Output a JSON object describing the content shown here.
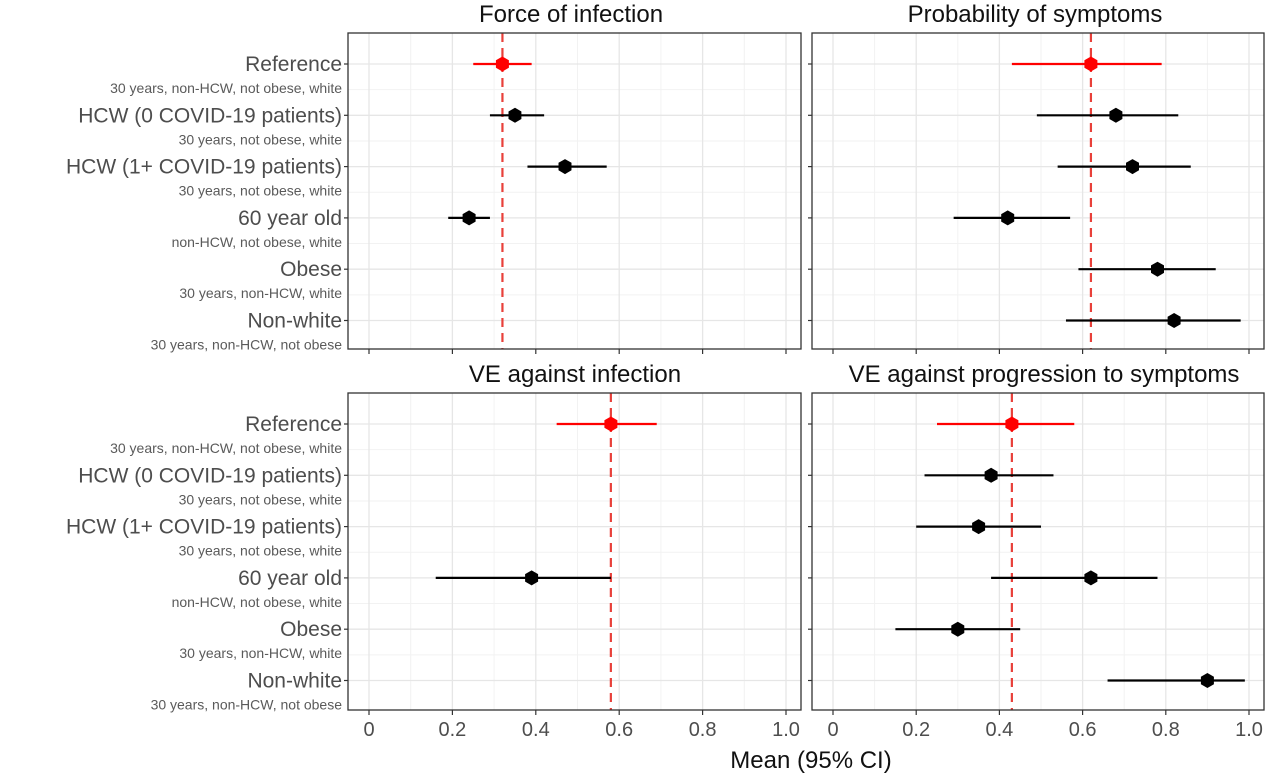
{
  "figure": {
    "xlabel": "Mean (95% CI)"
  },
  "categories": [
    {
      "label": "Reference",
      "sub": "30 years, non-HCW, not obese, white"
    },
    {
      "label": "HCW (0 COVID-19 patients)",
      "sub": "30 years, not obese, white"
    },
    {
      "label": "HCW (1+ COVID-19 patients)",
      "sub": "30 years, not obese, white"
    },
    {
      "label": "60 year old",
      "sub": "non-HCW, not obese, white"
    },
    {
      "label": "Obese",
      "sub": "30 years, non-HCW, white"
    },
    {
      "label": "Non-white",
      "sub": "30 years, non-HCW, not obese"
    }
  ],
  "colors": {
    "reference": "#ff0000",
    "point": "#000000",
    "refline": "#e8403a",
    "grid_major": "#e6e6e6",
    "grid_minor": "#f2f2f2"
  },
  "chart_data": [
    {
      "type": "scatter",
      "title": "Force of infection",
      "xlim": [
        0,
        1
      ],
      "xticks": [
        "0",
        "0.2",
        "0.4",
        "0.6",
        "0.8",
        "1.0"
      ],
      "reference_line": 0.32,
      "points": [
        {
          "mean": 0.32,
          "lo": 0.25,
          "hi": 0.39
        },
        {
          "mean": 0.35,
          "lo": 0.29,
          "hi": 0.42
        },
        {
          "mean": 0.47,
          "lo": 0.38,
          "hi": 0.57
        },
        {
          "mean": 0.24,
          "lo": 0.19,
          "hi": 0.29
        },
        {
          "mean": null,
          "lo": null,
          "hi": null
        },
        {
          "mean": null,
          "lo": null,
          "hi": null
        }
      ]
    },
    {
      "type": "scatter",
      "title": "Probability of symptoms",
      "xlim": [
        0,
        1
      ],
      "xticks": [
        "0",
        "0.2",
        "0.4",
        "0.6",
        "0.8",
        "1.0"
      ],
      "reference_line": 0.62,
      "points": [
        {
          "mean": 0.62,
          "lo": 0.43,
          "hi": 0.79
        },
        {
          "mean": 0.68,
          "lo": 0.49,
          "hi": 0.83
        },
        {
          "mean": 0.72,
          "lo": 0.54,
          "hi": 0.86
        },
        {
          "mean": 0.42,
          "lo": 0.29,
          "hi": 0.57
        },
        {
          "mean": 0.78,
          "lo": 0.59,
          "hi": 0.92
        },
        {
          "mean": 0.82,
          "lo": 0.56,
          "hi": 0.98
        }
      ]
    },
    {
      "type": "scatter",
      "title": "VE against infection",
      "xlim": [
        0,
        1
      ],
      "xticks": [
        "0",
        "0.2",
        "0.4",
        "0.6",
        "0.8",
        "1.0"
      ],
      "reference_line": 0.58,
      "points": [
        {
          "mean": 0.58,
          "lo": 0.45,
          "hi": 0.69
        },
        {
          "mean": null,
          "lo": null,
          "hi": null
        },
        {
          "mean": null,
          "lo": null,
          "hi": null
        },
        {
          "mean": 0.39,
          "lo": 0.16,
          "hi": 0.58
        },
        {
          "mean": null,
          "lo": null,
          "hi": null
        },
        {
          "mean": null,
          "lo": null,
          "hi": null
        }
      ]
    },
    {
      "type": "scatter",
      "title": "VE against progression to symptoms",
      "xlim": [
        0,
        1
      ],
      "xticks": [
        "0",
        "0.2",
        "0.4",
        "0.6",
        "0.8",
        "1.0"
      ],
      "reference_line": 0.43,
      "points": [
        {
          "mean": 0.43,
          "lo": 0.25,
          "hi": 0.58
        },
        {
          "mean": 0.38,
          "lo": 0.22,
          "hi": 0.53
        },
        {
          "mean": 0.35,
          "lo": 0.2,
          "hi": 0.5
        },
        {
          "mean": 0.62,
          "lo": 0.38,
          "hi": 0.78
        },
        {
          "mean": 0.3,
          "lo": 0.15,
          "hi": 0.45
        },
        {
          "mean": 0.9,
          "lo": 0.66,
          "hi": 0.99
        }
      ]
    }
  ]
}
